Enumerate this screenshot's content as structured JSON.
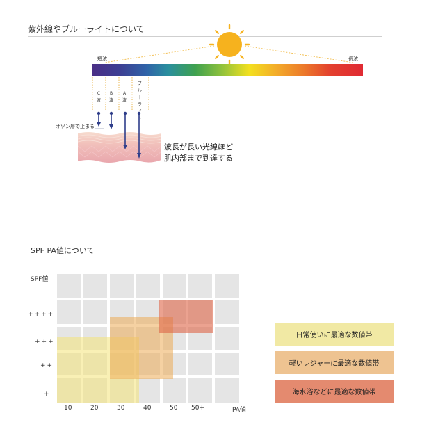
{
  "uv_section": {
    "title": "紫外線やブルーライトについて",
    "short_wave_label": "短波",
    "long_wave_label": "長波",
    "rays": [
      {
        "label": "C波",
        "stops_at": "ozone"
      },
      {
        "label": "B波",
        "stops_at": "epidermis"
      },
      {
        "label": "A波",
        "stops_at": "dermis"
      },
      {
        "label": "ブルーライト",
        "stops_at": "deep"
      }
    ],
    "ozone_label": "オゾン層で止まる",
    "skin_caption_lines": [
      "波長が長い光線ほど",
      "肌内部まで到達する"
    ],
    "colors": {
      "sun": "#f6b21e",
      "arrow": "#2f3e8a",
      "skin_top": "#f6d6cc",
      "skin_bottom": "#e7a0a8"
    }
  },
  "spf_section": {
    "title": "SPF PA値について",
    "y_axis_title": "SPF値",
    "y_labels": [
      "++++",
      "+++",
      "++",
      "+"
    ],
    "x_labels": [
      "10",
      "20",
      "30",
      "40",
      "50",
      "50+"
    ],
    "x_axis_title": "PA値",
    "legend": [
      {
        "label": "日常使いに最適な数値帯",
        "color": "#f1e9a4"
      },
      {
        "label": "軽いレジャーに最適な数値帯",
        "color": "#eec391"
      },
      {
        "label": "海水浴などに最適な数値帯",
        "color": "#e48a6f"
      }
    ]
  }
}
